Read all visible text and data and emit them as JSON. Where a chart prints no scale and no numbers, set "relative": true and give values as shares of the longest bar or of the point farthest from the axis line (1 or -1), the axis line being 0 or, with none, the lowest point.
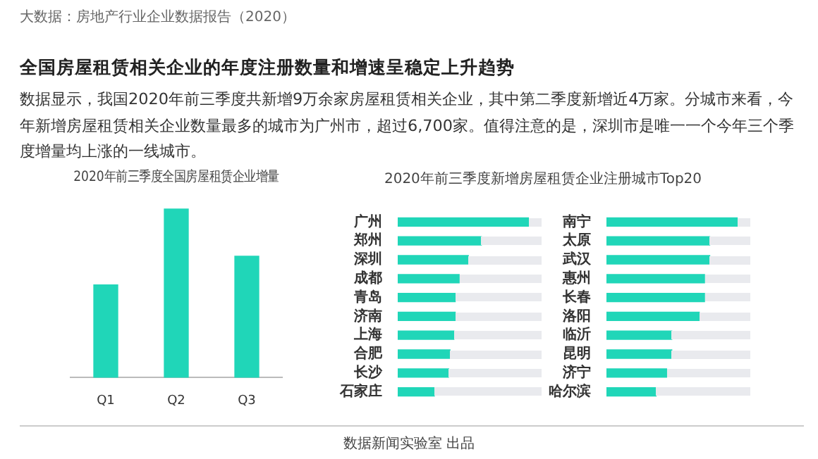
{
  "chart_data": [
    {
      "type": "other",
      "subtitle": "大数据：房地产行业企业数据报告（2020）",
      "title": "全国房屋租赁相关企业的年度注册数量和增速呈稳定上升趋势",
      "annotations": [
        "数据显示，我国2020年前三季度共新增9万余家房屋租赁相关企业，其中第二季度新增近4万家。分城市来看，今年新增房屋租赁相关企业数量最多的城市为广州市，超过6,700家。值得注意的是，深圳市是唯一一个今年三个季度增量均上涨的一线城市。",
        "数据新闻实验室 出品"
      ]
    },
    {
      "type": "bar",
      "title": "2020年前三季度全国房屋租赁企业增量",
      "categories": [
        "Q1",
        "Q2",
        "Q3"
      ],
      "values": [
        0.55,
        1,
        0.72
      ],
      "color": "#20d6b8",
      "relative": true,
      "legend": false
    },
    {
      "type": "bar",
      "orientation": "horizontal",
      "title": "2020年前三季度新增房屋租赁企业注册城市Top20",
      "categories": [
        "广州",
        "郑州",
        "深圳",
        "成都",
        "青岛",
        "济南",
        "上海",
        "合肥",
        "长沙",
        "石家庄"
      ],
      "values": [
        1,
        0.64,
        0.54,
        0.47,
        0.44,
        0.44,
        0.43,
        0.4,
        0.39,
        0.28
      ],
      "color": "#20d6b8",
      "relative": true,
      "legend": false
    },
    {
      "type": "bar",
      "orientation": "horizontal",
      "categories": [
        "南宁",
        "太原",
        "武汉",
        "惠州",
        "长春",
        "洛阳",
        "临沂",
        "昆明",
        "济宁",
        "哈尔滨"
      ],
      "values": [
        1,
        0.79,
        0.79,
        0.75,
        0.75,
        0.71,
        0.5,
        0.5,
        0.46,
        0.38
      ],
      "color": "#20d6b8",
      "relative": true,
      "legend": false
    }
  ]
}
